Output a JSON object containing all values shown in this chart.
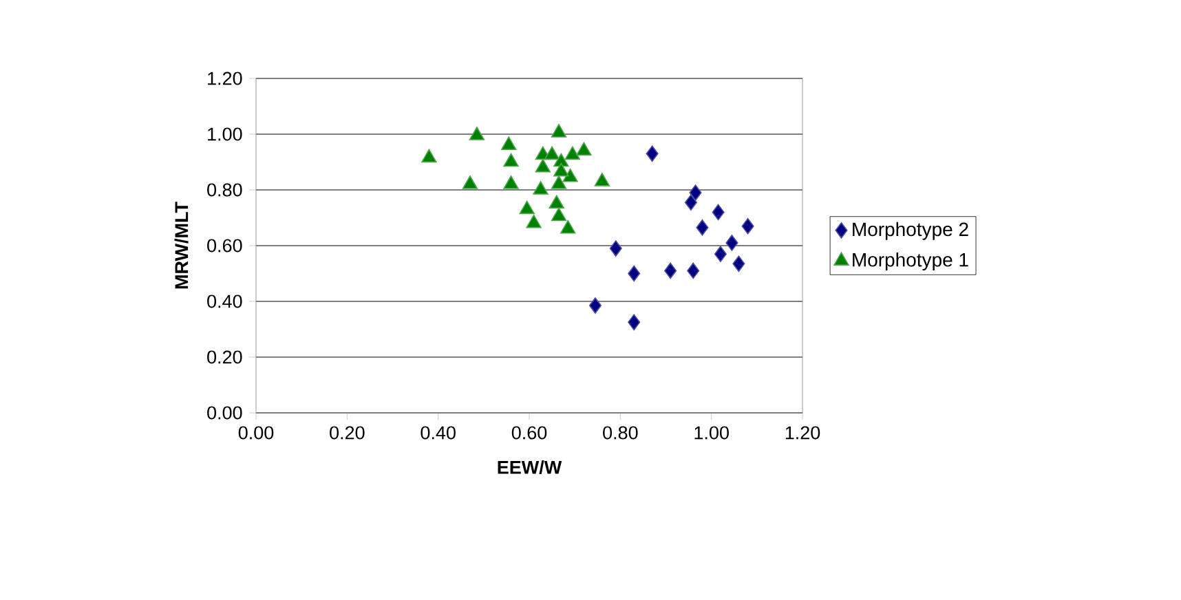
{
  "chart_data": {
    "type": "scatter",
    "xlabel": "EEW/W",
    "ylabel": "MRW/MLT",
    "xlim": [
      0,
      1.2
    ],
    "ylim": [
      0,
      1.2
    ],
    "xticks": [
      {
        "value": 0,
        "label": "0.00"
      },
      {
        "value": 0.2,
        "label": "0.20"
      },
      {
        "value": 0.4,
        "label": "0.40"
      },
      {
        "value": 0.6,
        "label": "0.60"
      },
      {
        "value": 0.8,
        "label": "0.80"
      },
      {
        "value": 1.0,
        "label": "1.00"
      },
      {
        "value": 1.2,
        "label": "1.20"
      }
    ],
    "yticks": [
      {
        "value": 0,
        "label": "0.00"
      },
      {
        "value": 0.2,
        "label": "0.20"
      },
      {
        "value": 0.4,
        "label": "0.40"
      },
      {
        "value": 0.6,
        "label": "0.60"
      },
      {
        "value": 0.8,
        "label": "0.80"
      },
      {
        "value": 1.0,
        "label": "1.00"
      },
      {
        "value": 1.2,
        "label": "1.20"
      }
    ],
    "grid": "y",
    "legend": "right",
    "series": [
      {
        "name": "Morphotype 2",
        "color": "#000080",
        "marker": "diamond",
        "x": [
          0.87,
          0.965,
          0.955,
          1.015,
          1.08,
          0.985,
          0.98,
          0.79,
          0.83,
          0.91,
          0.96,
          1.02,
          1.045,
          1.06,
          0.745,
          0.83
        ],
        "values": [
          0.93,
          0.79,
          0.755,
          0.72,
          0.67,
          null,
          0.665,
          0.59,
          0.5,
          0.51,
          0.51,
          0.57,
          0.61,
          0.535,
          0.385,
          0.325
        ]
      },
      {
        "name": "Morphotype 1",
        "color": "#008000",
        "marker": "triangle",
        "x": [
          0.38,
          0.485,
          0.47,
          0.555,
          0.56,
          0.56,
          0.665,
          0.63,
          0.65,
          0.67,
          0.695,
          0.72,
          0.63,
          0.69,
          0.665,
          0.76,
          0.625,
          0.595,
          0.61,
          0.66,
          0.665,
          0.685,
          0.67
        ],
        "values": [
          0.915,
          0.995,
          0.82,
          0.96,
          0.9,
          0.82,
          1.005,
          0.925,
          0.925,
          0.9,
          0.925,
          0.94,
          0.88,
          0.845,
          0.82,
          0.83,
          0.8,
          0.73,
          0.68,
          0.75,
          0.705,
          0.66,
          0.865
        ]
      }
    ]
  }
}
